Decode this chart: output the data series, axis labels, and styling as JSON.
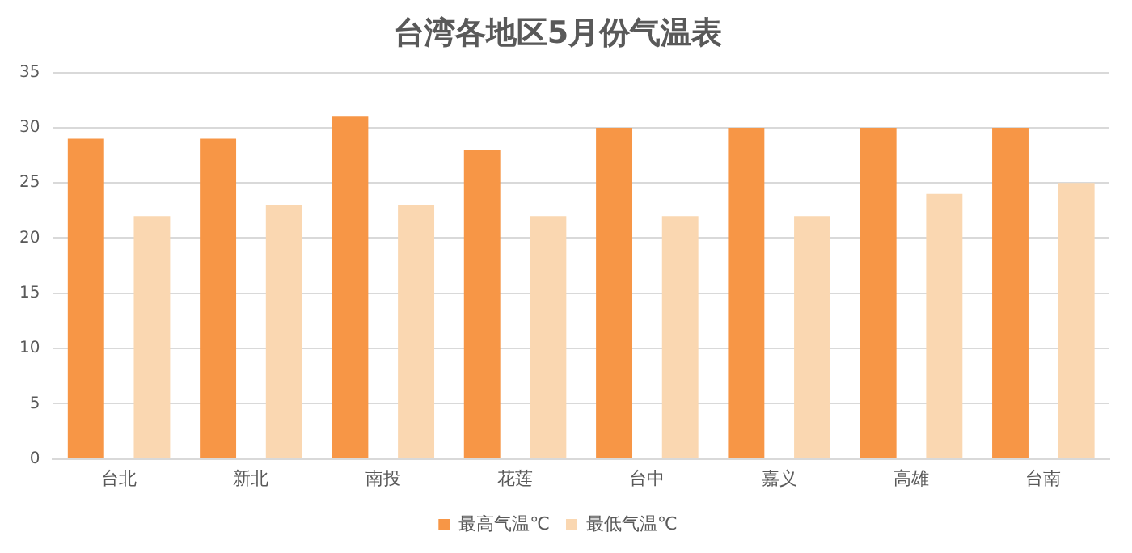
{
  "chart_data": {
    "type": "bar",
    "title": "台湾各地区5月份气温表",
    "categories": [
      "台北",
      "新北",
      "南投",
      "花莲",
      "台中",
      "嘉义",
      "高雄",
      "台南"
    ],
    "series": [
      {
        "name": "最高气温℃",
        "color": "#f79646",
        "values": [
          29,
          29,
          31,
          28,
          30,
          30,
          30,
          30
        ]
      },
      {
        "name": "最低气温℃",
        "color": "#fad7b1",
        "values": [
          22,
          23,
          23,
          22,
          22,
          22,
          24,
          25
        ]
      }
    ],
    "ylim": [
      0,
      35
    ],
    "yticks": [
      0,
      5,
      10,
      15,
      20,
      25,
      30,
      35
    ],
    "grid": "y",
    "legend": "bottom"
  }
}
